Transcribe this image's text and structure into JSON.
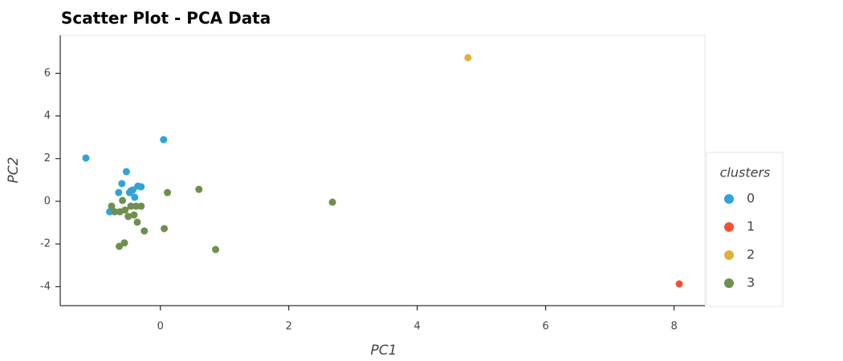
{
  "chart_data": {
    "type": "scatter",
    "title": "Scatter Plot - PCA Data",
    "x_label": "PC1",
    "y_label": "PC2",
    "legend_title": "clusters",
    "legend_position": "right",
    "xlim": [
      -1.56,
      8.48
    ],
    "ylim": [
      -4.89,
      7.78
    ],
    "xticks": [
      0,
      2,
      4,
      6,
      8
    ],
    "yticks": [
      -4,
      -2,
      0,
      2,
      4,
      6
    ],
    "series": [
      {
        "name": "0",
        "color": "#30a2da",
        "x": [
          -1.16,
          0.05,
          -0.53,
          -0.6,
          -0.65,
          -0.35,
          -0.3,
          -0.46,
          -0.43,
          -0.4,
          -0.48,
          -0.79
        ],
        "y": [
          2.03,
          2.89,
          1.39,
          0.83,
          0.41,
          0.71,
          0.68,
          0.49,
          0.53,
          0.19,
          0.41,
          -0.49
        ]
      },
      {
        "name": "1",
        "color": "#fc4f30",
        "x": [
          8.08
        ],
        "y": [
          -3.87
        ]
      },
      {
        "name": "2",
        "color": "#e5ae38",
        "x": [
          4.79
        ],
        "y": [
          6.73
        ]
      },
      {
        "name": "3",
        "color": "#6d904f",
        "x": [
          -0.76,
          -0.71,
          -0.63,
          -0.59,
          -0.55,
          -0.5,
          -0.46,
          -0.41,
          -0.38,
          -0.36,
          -0.3,
          -0.25,
          -0.56,
          -0.64,
          0.11,
          0.6,
          0.06,
          0.86,
          2.68
        ],
        "y": [
          -0.23,
          -0.49,
          -0.49,
          0.04,
          -0.41,
          -0.71,
          -0.23,
          -0.64,
          -0.23,
          -0.98,
          -0.23,
          -1.39,
          -1.95,
          -2.11,
          0.41,
          0.56,
          -1.28,
          -2.26,
          -0.04
        ]
      }
    ]
  }
}
